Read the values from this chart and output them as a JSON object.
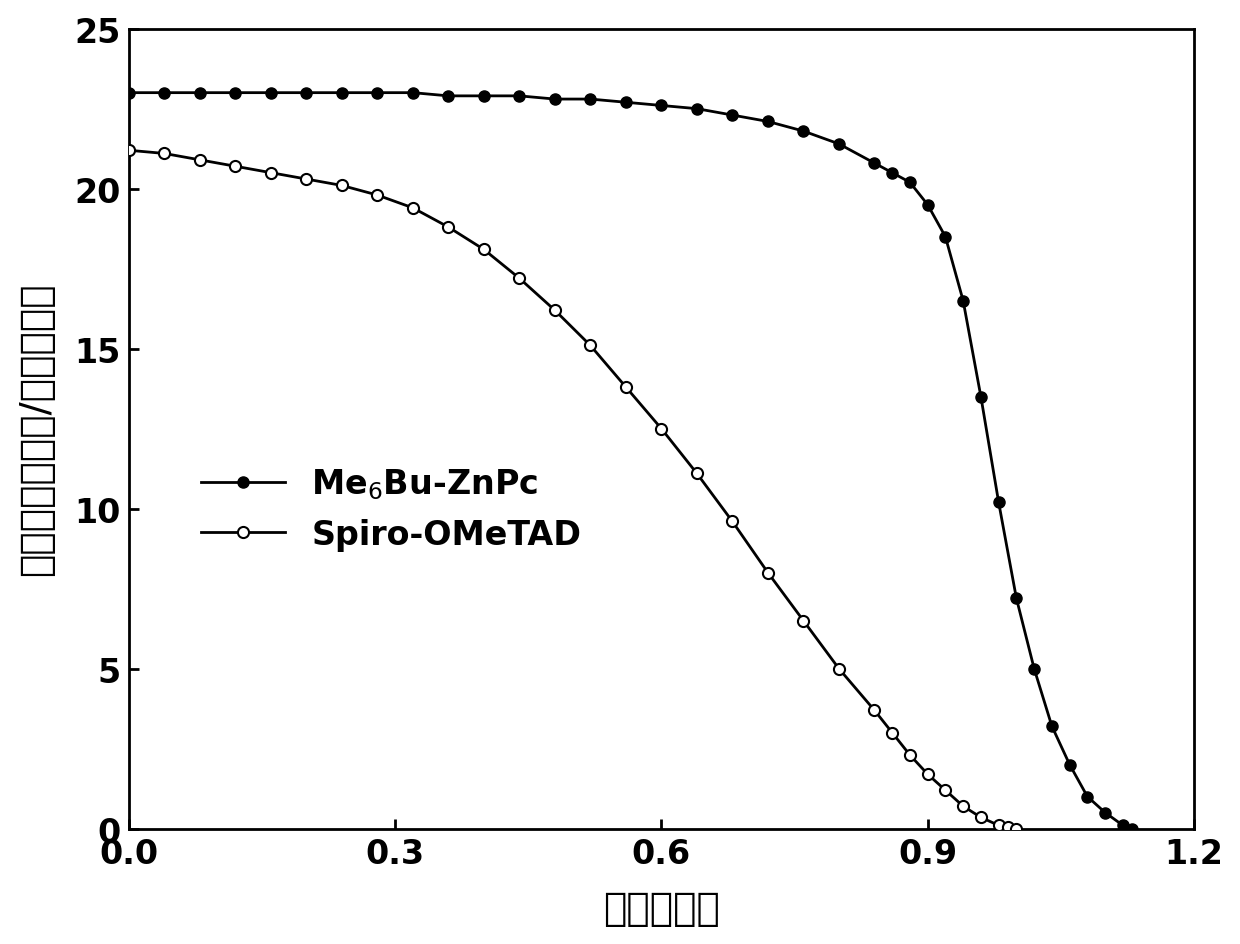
{
  "title": "",
  "xlabel": "电压（伏）",
  "ylabel": "电流密度（毫安/平方厘米）",
  "xlim": [
    0.0,
    1.2
  ],
  "ylim": [
    0,
    25
  ],
  "xticks": [
    0.0,
    0.3,
    0.6,
    0.9,
    1.2
  ],
  "yticks": [
    0,
    5,
    10,
    15,
    20,
    25
  ],
  "background_color": "#ffffff",
  "line_color": "#000000",
  "series1_x": [
    0.0,
    0.04,
    0.08,
    0.12,
    0.16,
    0.2,
    0.24,
    0.28,
    0.32,
    0.36,
    0.4,
    0.44,
    0.48,
    0.52,
    0.56,
    0.6,
    0.64,
    0.68,
    0.72,
    0.76,
    0.8,
    0.84,
    0.86,
    0.88,
    0.9,
    0.92,
    0.94,
    0.96,
    0.98,
    1.0,
    1.02,
    1.04,
    1.06,
    1.08,
    1.1,
    1.12,
    1.13
  ],
  "series1_y": [
    23.0,
    23.0,
    23.0,
    23.0,
    23.0,
    23.0,
    23.0,
    23.0,
    23.0,
    22.9,
    22.9,
    22.9,
    22.8,
    22.8,
    22.7,
    22.6,
    22.5,
    22.3,
    22.1,
    21.8,
    21.4,
    20.8,
    20.5,
    20.2,
    19.5,
    18.5,
    16.5,
    13.5,
    10.2,
    7.2,
    5.0,
    3.2,
    2.0,
    1.0,
    0.5,
    0.1,
    0.0
  ],
  "series2_x": [
    0.0,
    0.04,
    0.08,
    0.12,
    0.16,
    0.2,
    0.24,
    0.28,
    0.32,
    0.36,
    0.4,
    0.44,
    0.48,
    0.52,
    0.56,
    0.6,
    0.64,
    0.68,
    0.72,
    0.76,
    0.8,
    0.84,
    0.86,
    0.88,
    0.9,
    0.92,
    0.94,
    0.96,
    0.98,
    0.99,
    1.0
  ],
  "series2_y": [
    21.2,
    21.1,
    20.9,
    20.7,
    20.5,
    20.3,
    20.1,
    19.8,
    19.4,
    18.8,
    18.1,
    17.2,
    16.2,
    15.1,
    13.8,
    12.5,
    11.1,
    9.6,
    8.0,
    6.5,
    5.0,
    3.7,
    3.0,
    2.3,
    1.7,
    1.2,
    0.7,
    0.35,
    0.1,
    0.04,
    0.0
  ]
}
